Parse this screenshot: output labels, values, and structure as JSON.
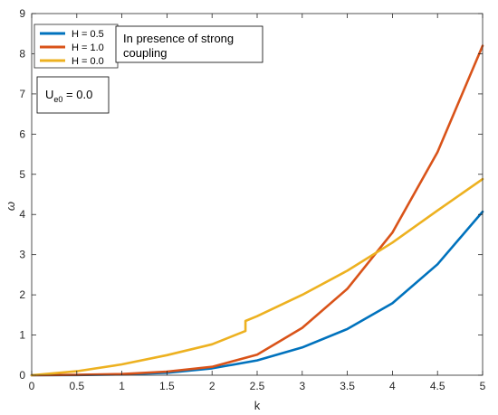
{
  "chart_data": {
    "type": "line",
    "xlabel": "k",
    "ylabel": "ω",
    "xlim": [
      0,
      5
    ],
    "ylim": [
      0,
      9
    ],
    "xticks": [
      0,
      0.5,
      1,
      1.5,
      2,
      2.5,
      3,
      3.5,
      4,
      4.5,
      5
    ],
    "yticks": [
      0,
      1,
      2,
      3,
      4,
      5,
      6,
      7,
      8,
      9
    ],
    "xtick_labels": [
      "0",
      "0.5",
      "1",
      "1.5",
      "2",
      "2.5",
      "3",
      "3.5",
      "4",
      "4.5",
      "5"
    ],
    "ytick_labels": [
      "0",
      "1",
      "2",
      "3",
      "4",
      "5",
      "6",
      "7",
      "8",
      "9"
    ],
    "grid": false,
    "legend_position": "top-left",
    "series": [
      {
        "name": "H = 0.5",
        "color": "#0072BD",
        "x": [
          0,
          0.5,
          1,
          1.5,
          2,
          2.5,
          3,
          3.5,
          4,
          4.5,
          5
        ],
        "y": [
          0,
          0.005,
          0.02,
          0.06,
          0.17,
          0.37,
          0.69,
          1.15,
          1.79,
          2.76,
          4.07
        ]
      },
      {
        "name": "H = 1.0",
        "color": "#D95319",
        "x": [
          0,
          0.5,
          1,
          1.5,
          2,
          2.5,
          3,
          3.5,
          4,
          4.5,
          5
        ],
        "y": [
          0,
          0.01,
          0.03,
          0.09,
          0.21,
          0.51,
          1.18,
          2.15,
          3.55,
          5.55,
          8.2
        ]
      },
      {
        "name": "H = 0.0",
        "color": "#EDB120",
        "x": [
          0,
          0.5,
          1,
          1.5,
          2,
          2.37,
          2.37,
          2.5,
          3,
          3.5,
          4,
          4.5,
          5
        ],
        "y": [
          0,
          0.1,
          0.27,
          0.5,
          0.77,
          1.1,
          1.35,
          1.47,
          2.0,
          2.6,
          3.3,
          4.1,
          4.88
        ]
      }
    ],
    "annotations": {
      "coupling_line1": "In presence of strong",
      "coupling_line2": "coupling",
      "ue0_main": "U",
      "ue0_sub": "e0",
      "ue0_rest": " = 0.0"
    }
  }
}
